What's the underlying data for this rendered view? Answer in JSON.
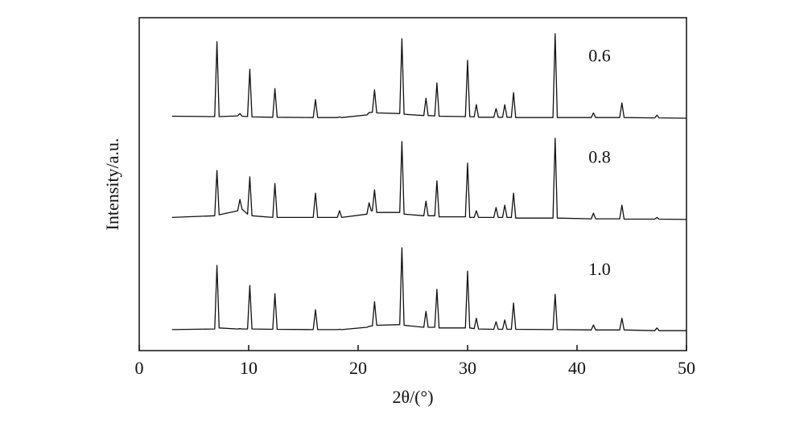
{
  "chart_data": {
    "type": "line",
    "x_label": "2θ/(°)",
    "y_label": "Intensity/a.u.",
    "xlim": [
      0,
      50
    ],
    "xticks": [
      0,
      10,
      20,
      30,
      40,
      50
    ],
    "ylim": [
      0,
      100
    ],
    "x": [
      3,
      6.9,
      7.1,
      7.3,
      9.0,
      9.2,
      9.4,
      9.9,
      10.1,
      10.3,
      12.2,
      12.4,
      12.6,
      15.9,
      16.1,
      16.3,
      18.1,
      18.3,
      18.5,
      20.8,
      21.0,
      21.2,
      21.3,
      21.5,
      21.7,
      23.8,
      24.0,
      24.2,
      26.0,
      26.2,
      26.4,
      27.0,
      27.2,
      27.4,
      29.8,
      30.0,
      30.2,
      30.6,
      30.8,
      31.0,
      32.4,
      32.6,
      32.8,
      33.2,
      33.4,
      33.6,
      34.0,
      34.2,
      34.4,
      37.8,
      38.0,
      38.2,
      41.3,
      41.5,
      41.7,
      43.9,
      44.1,
      44.3,
      47.1,
      47.3,
      47.5,
      50
    ],
    "series": [
      {
        "name": "0.6",
        "color": "#111111",
        "values": [
          70.4,
          70.3,
          92.8,
          70.3,
          70.5,
          71.2,
          70.4,
          70.3,
          84.5,
          70.2,
          70.1,
          78.7,
          70.1,
          70,
          75.4,
          70,
          70,
          70.2,
          70,
          70.8,
          71.5,
          71.6,
          71.6,
          78.3,
          71.4,
          71.2,
          93.7,
          71,
          70.6,
          75.8,
          70.6,
          70.5,
          80.4,
          70.4,
          70.3,
          87.2,
          70.3,
          70.2,
          73.9,
          70.1,
          70.1,
          72.7,
          70.1,
          70.1,
          73.9,
          70.1,
          70.1,
          77.5,
          70,
          70,
          95.2,
          70,
          70,
          71.4,
          70,
          70,
          74.4,
          70,
          69.9,
          70.7,
          69.9,
          69.8
        ]
      },
      {
        "name": "0.8",
        "color": "#111111",
        "values": [
          40,
          40.5,
          54.1,
          40.8,
          42,
          45.4,
          42.5,
          41,
          52.2,
          40.5,
          40,
          50.2,
          40,
          40,
          47.3,
          40,
          40,
          42,
          40,
          41,
          44.4,
          42,
          42,
          48.3,
          41.5,
          41.5,
          62.8,
          41,
          40.5,
          44.9,
          40.5,
          40.5,
          51,
          40.2,
          40.2,
          56.3,
          40,
          40,
          42,
          40,
          40,
          43,
          40,
          40,
          43.7,
          40,
          40,
          47.3,
          39.8,
          39.8,
          63.8,
          39.8,
          39.6,
          41.3,
          39.6,
          39.6,
          43.7,
          39.5,
          39.5,
          40,
          39.5,
          39.4
        ]
      },
      {
        "name": "1.0",
        "color": "#111111",
        "values": [
          6.3,
          6.5,
          25.6,
          6.8,
          6.5,
          6.6,
          6.5,
          6.5,
          19.6,
          6.5,
          6.4,
          17.1,
          6.4,
          6.3,
          12.3,
          6.3,
          6.3,
          6.4,
          6.3,
          7,
          7.3,
          7.4,
          7.4,
          14.7,
          7.6,
          7.8,
          30.9,
          7.6,
          7,
          11.8,
          7,
          7,
          18.4,
          6.8,
          6.8,
          23.9,
          6.8,
          6.6,
          9.7,
          6.5,
          6.4,
          8.7,
          6.4,
          6.4,
          9.2,
          6.4,
          6.4,
          14.3,
          6.4,
          6.3,
          16.9,
          6.3,
          6.2,
          7.7,
          6.2,
          6.2,
          9.7,
          6.2,
          6,
          6.8,
          6,
          6
        ]
      }
    ]
  }
}
